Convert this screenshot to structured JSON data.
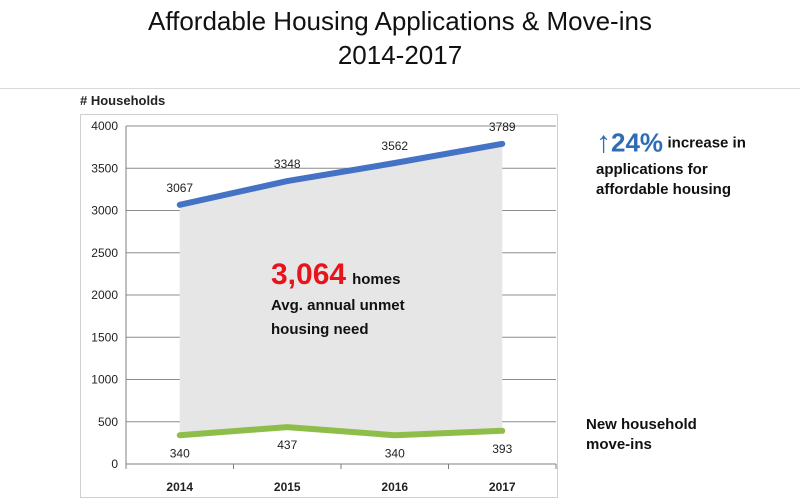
{
  "header": {
    "title_line1": "Affordable Housing Applications & Move-ins",
    "title_line2": "2014-2017"
  },
  "callout": {
    "value": "3,064",
    "unit": "homes",
    "line1": "Avg. annual unmet",
    "line2": "housing need"
  },
  "side_stat": {
    "value": "24%",
    "text1": "increase in",
    "text2": "applications for",
    "text3": "affordable housing",
    "color": "#2e6db4"
  },
  "series_label": {
    "line1": "New household",
    "line2": "move-ins"
  },
  "colors": {
    "applications": "#4472c4",
    "move_ins": "#8fbd4a",
    "gap_fill": "#e6e6e6",
    "highlight": "#e8141b"
  },
  "chart_data": {
    "type": "line",
    "ylabel": "# Households",
    "xlabel": "",
    "categories": [
      "2014",
      "2015",
      "2016",
      "2017"
    ],
    "ylim": [
      0,
      4000
    ],
    "yticks": [
      0,
      500,
      1000,
      1500,
      2000,
      2500,
      3000,
      3500,
      4000
    ],
    "grid": true,
    "series": [
      {
        "values": [
          3067,
          3348,
          3562,
          3789
        ],
        "labels": [
          "3067",
          "3348",
          "3562",
          "3789"
        ]
      },
      {
        "name": "New household move-ins",
        "values": [
          340,
          437,
          340,
          393
        ],
        "labels": [
          "340",
          "437",
          "340",
          "393"
        ]
      }
    ]
  }
}
